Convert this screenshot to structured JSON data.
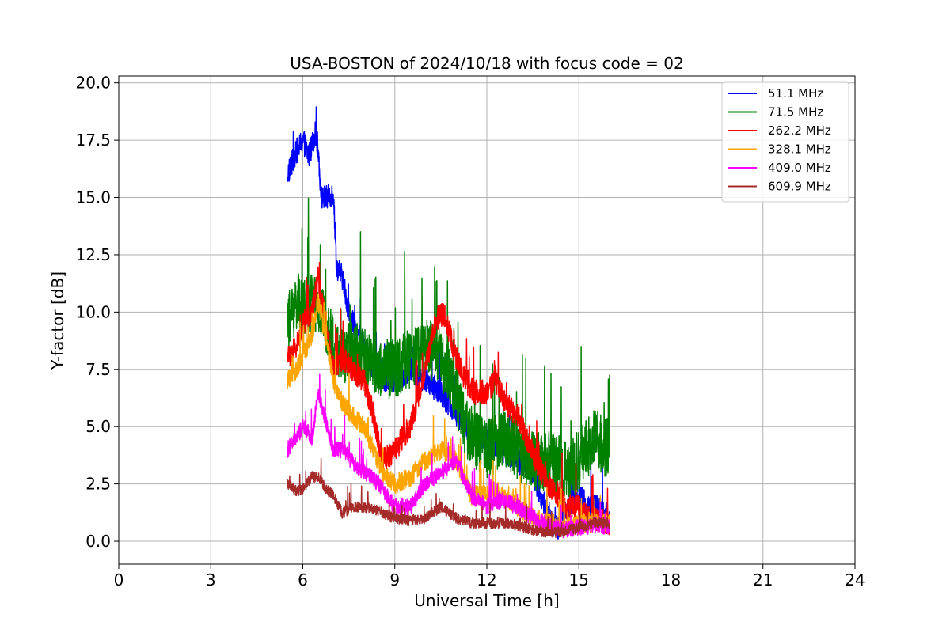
{
  "chart_data": {
    "type": "line",
    "title": "USA-BOSTON of 2024/10/18 with focus code = 02",
    "xlabel": "Universal Time [h]",
    "ylabel": "Y-factor [dB]",
    "xlim": [
      0,
      24
    ],
    "ylim": [
      -1.0,
      20.3
    ],
    "xticks": [
      0,
      3,
      6,
      9,
      12,
      15,
      18,
      21,
      24
    ],
    "xtick_labels": [
      "0",
      "3",
      "6",
      "9",
      "12",
      "15",
      "18",
      "21",
      "24"
    ],
    "yticks": [
      0,
      2.5,
      5,
      7.5,
      10,
      12.5,
      15,
      17.5,
      20
    ],
    "ytick_labels": [
      "0.0",
      "2.5",
      "5.0",
      "7.5",
      "10.0",
      "12.5",
      "15.0",
      "17.5",
      "20.0"
    ],
    "grid": true,
    "legend_position": "top-right",
    "series": [
      {
        "name": " 51.1 MHz",
        "color": "#0000ff",
        "noise": 0.9,
        "x": [
          5.5,
          5.8,
          6.0,
          6.2,
          6.4,
          6.5,
          6.6,
          6.8,
          7.0,
          7.1,
          7.3,
          7.5,
          7.8,
          8.0,
          8.3,
          8.6,
          9.0,
          9.5,
          10.0,
          10.5,
          11.0,
          11.3,
          11.6,
          12.0,
          12.5,
          13.0,
          13.5,
          14.0,
          14.3,
          14.6,
          15.0,
          15.3,
          15.6,
          16.0
        ],
        "y": [
          16.0,
          17.0,
          17.5,
          16.8,
          17.8,
          17.2,
          15.0,
          15.0,
          15.2,
          12.0,
          11.5,
          10.0,
          9.0,
          8.5,
          7.5,
          7.0,
          7.0,
          7.5,
          7.0,
          6.5,
          5.5,
          5.0,
          4.5,
          4.5,
          4.0,
          3.5,
          3.0,
          1.0,
          0.5,
          1.5,
          2.0,
          1.5,
          1.5,
          1.0
        ]
      },
      {
        "name": " 71.5 MHz",
        "color": "#008000",
        "noise": 2.2,
        "x": [
          5.5,
          5.8,
          6.0,
          6.3,
          6.5,
          6.8,
          7.0,
          7.3,
          7.6,
          8.0,
          8.5,
          9.0,
          9.5,
          10.0,
          10.5,
          11.0,
          11.3,
          11.6,
          12.0,
          12.5,
          13.0,
          13.5,
          14.0,
          14.5,
          15.0,
          15.5,
          16.0
        ],
        "y": [
          9.5,
          10.5,
          10.0,
          10.5,
          10.0,
          9.5,
          8.5,
          8.0,
          8.5,
          8.0,
          7.5,
          7.5,
          8.0,
          8.5,
          8.0,
          6.5,
          5.0,
          4.5,
          4.0,
          4.5,
          4.0,
          3.5,
          3.5,
          3.0,
          3.5,
          4.5,
          4.0
        ]
      },
      {
        "name": " 262.2 MHz",
        "color": "#ff0000",
        "noise": 0.9,
        "x": [
          5.5,
          5.8,
          6.0,
          6.3,
          6.5,
          6.8,
          7.0,
          7.3,
          7.6,
          8.0,
          8.3,
          8.6,
          9.0,
          9.5,
          10.0,
          10.3,
          10.6,
          11.0,
          11.3,
          11.6,
          12.0,
          12.3,
          12.6,
          13.0,
          13.3,
          13.6,
          14.0,
          14.3,
          14.6,
          15.0,
          15.3,
          15.6,
          16.0
        ],
        "y": [
          8.0,
          8.5,
          9.5,
          10.0,
          11.5,
          9.0,
          7.5,
          8.0,
          7.5,
          7.0,
          5.5,
          3.5,
          4.0,
          5.0,
          7.5,
          9.5,
          10.0,
          8.0,
          7.0,
          6.5,
          6.5,
          7.0,
          6.0,
          5.5,
          4.5,
          3.5,
          2.5,
          2.0,
          1.5,
          1.5,
          1.0,
          1.0,
          0.8
        ]
      },
      {
        "name": " 328.1 MHz",
        "color": "#ffa500",
        "noise": 0.7,
        "x": [
          5.5,
          5.8,
          6.0,
          6.3,
          6.5,
          6.8,
          7.0,
          7.3,
          7.6,
          8.0,
          8.3,
          8.6,
          9.0,
          9.5,
          10.0,
          10.5,
          11.0,
          11.5,
          12.0,
          12.5,
          13.0,
          13.5,
          14.0,
          14.5,
          15.0,
          15.5,
          16.0
        ],
        "y": [
          7.0,
          7.5,
          8.0,
          9.0,
          10.5,
          8.5,
          7.0,
          6.0,
          5.5,
          5.0,
          4.0,
          3.0,
          2.5,
          2.8,
          3.5,
          4.0,
          3.5,
          2.0,
          2.0,
          2.0,
          1.5,
          1.0,
          0.8,
          0.7,
          0.7,
          0.8,
          0.8
        ]
      },
      {
        "name": " 409.0 MHz",
        "color": "#ff00ff",
        "noise": 0.6,
        "x": [
          5.5,
          5.8,
          6.0,
          6.3,
          6.5,
          6.8,
          7.0,
          7.3,
          7.6,
          8.0,
          8.5,
          9.0,
          9.5,
          10.0,
          10.5,
          11.0,
          11.5,
          12.0,
          12.5,
          13.0,
          13.5,
          14.0,
          14.5,
          15.0,
          15.5,
          16.0
        ],
        "y": [
          4.0,
          4.5,
          5.0,
          4.5,
          6.5,
          5.0,
          4.0,
          4.0,
          3.5,
          3.0,
          2.5,
          1.5,
          1.5,
          2.5,
          3.0,
          3.5,
          2.0,
          1.5,
          1.8,
          1.5,
          1.0,
          0.7,
          0.5,
          0.6,
          0.7,
          0.6
        ]
      },
      {
        "name": " 609.9 MHz",
        "color": "#a52a2a",
        "noise": 0.4,
        "x": [
          5.5,
          5.8,
          6.0,
          6.3,
          6.5,
          6.8,
          7.0,
          7.3,
          7.6,
          8.0,
          8.5,
          9.0,
          9.5,
          10.0,
          10.5,
          11.0,
          11.5,
          12.0,
          12.5,
          13.0,
          13.5,
          14.0,
          14.5,
          15.0,
          15.5,
          16.0
        ],
        "y": [
          2.5,
          2.2,
          2.3,
          2.8,
          2.8,
          2.2,
          2.0,
          1.2,
          1.5,
          1.5,
          1.3,
          1.0,
          0.9,
          1.0,
          1.5,
          1.0,
          0.8,
          0.8,
          0.8,
          0.7,
          0.5,
          0.4,
          0.4,
          0.6,
          0.8,
          0.8
        ]
      }
    ]
  }
}
